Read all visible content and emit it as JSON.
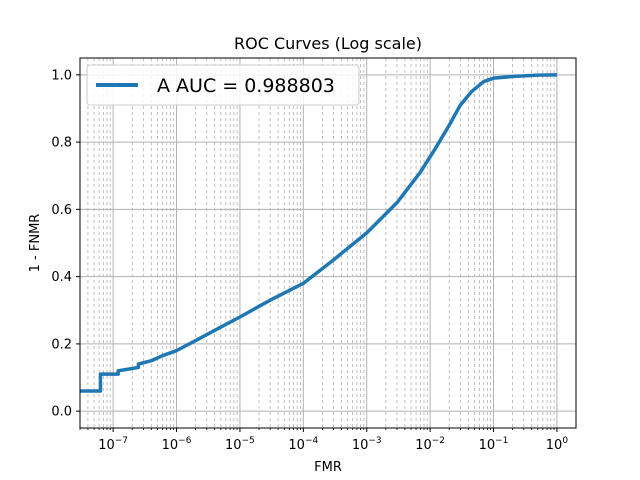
{
  "chart_data": {
    "type": "line",
    "title": "ROC Curves (Log scale)",
    "xlabel": "FMR",
    "ylabel": "1 - FNMR",
    "xscale": "log",
    "xlim": [
      3e-08,
      2.0
    ],
    "ylim": [
      -0.05,
      1.05
    ],
    "grid": true,
    "legend_position": "top-left",
    "x_ticks": [
      {
        "value": 1e-07,
        "base": "10",
        "exp": "−7"
      },
      {
        "value": 1e-06,
        "base": "10",
        "exp": "−6"
      },
      {
        "value": 1e-05,
        "base": "10",
        "exp": "−5"
      },
      {
        "value": 0.0001,
        "base": "10",
        "exp": "−4"
      },
      {
        "value": 0.001,
        "base": "10",
        "exp": "−3"
      },
      {
        "value": 0.01,
        "base": "10",
        "exp": "−2"
      },
      {
        "value": 0.1,
        "base": "10",
        "exp": "−1"
      },
      {
        "value": 1,
        "base": "10",
        "exp": "0"
      }
    ],
    "y_ticks": [
      {
        "value": 0.0,
        "label": "0.0"
      },
      {
        "value": 0.2,
        "label": "0.2"
      },
      {
        "value": 0.4,
        "label": "0.4"
      },
      {
        "value": 0.6,
        "label": "0.6"
      },
      {
        "value": 0.8,
        "label": "0.8"
      },
      {
        "value": 1.0,
        "label": "1.0"
      }
    ],
    "series": [
      {
        "name": "A AUC = 0.988803",
        "color": "#1f77b4",
        "x": [
          3e-08,
          6.3e-08,
          6.3e-08,
          1.2e-07,
          1.2e-07,
          2.5e-07,
          2.5e-07,
          4e-07,
          6e-07,
          1e-06,
          2e-06,
          5e-06,
          1e-05,
          3e-05,
          0.0001,
          0.0003,
          0.001,
          0.003,
          0.007,
          0.012,
          0.02,
          0.03,
          0.045,
          0.07,
          0.1,
          0.2,
          0.5,
          1.0
        ],
        "y": [
          0.06,
          0.06,
          0.11,
          0.11,
          0.12,
          0.13,
          0.14,
          0.15,
          0.165,
          0.18,
          0.21,
          0.25,
          0.28,
          0.33,
          0.38,
          0.45,
          0.53,
          0.62,
          0.71,
          0.78,
          0.85,
          0.91,
          0.95,
          0.98,
          0.99,
          0.995,
          0.999,
          1.0
        ]
      }
    ]
  }
}
